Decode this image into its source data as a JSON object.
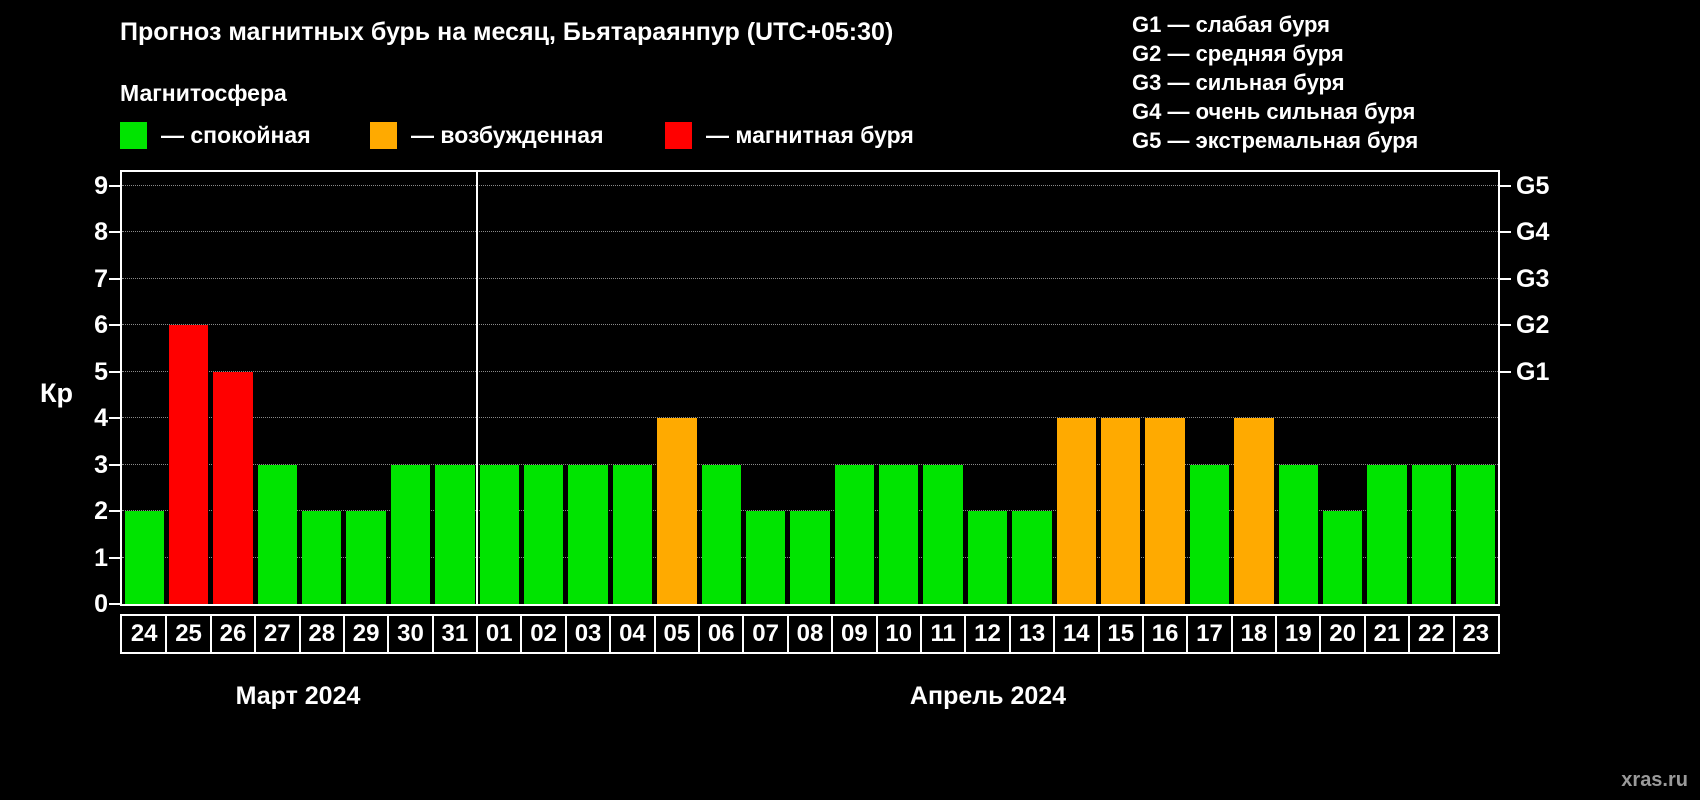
{
  "header": {
    "title": "Прогноз магнитных бурь на месяц, Бьятараянпур (UTC+05:30)"
  },
  "magnetosphere_legend": {
    "title": "Магнитосфера",
    "items": [
      {
        "name": "quiet",
        "label": "— спокойная",
        "color": "#00e400"
      },
      {
        "name": "excited",
        "label": "— возбужденная",
        "color": "#ffaa00"
      },
      {
        "name": "storm",
        "label": "— магнитная буря",
        "color": "#ff0000"
      }
    ]
  },
  "g_legend": [
    "G1 — слабая буря",
    "G2 — средняя буря",
    "G3 — сильная буря",
    "G4 — очень сильная буря",
    "G5 — экстремальная буря"
  ],
  "watermark": "xras.ru",
  "chart_data": {
    "type": "bar",
    "title": "Прогноз магнитных бурь на месяц, Бьятараянпур (UTC+05:30)",
    "ylabel": "Кр",
    "ylim": [
      0,
      9.3
    ],
    "grid": true,
    "legend_position": "top",
    "categories": [
      "24",
      "25",
      "26",
      "27",
      "28",
      "29",
      "30",
      "31",
      "01",
      "02",
      "03",
      "04",
      "05",
      "06",
      "07",
      "08",
      "09",
      "10",
      "11",
      "12",
      "13",
      "14",
      "15",
      "16",
      "17",
      "18",
      "19",
      "20",
      "21",
      "22",
      "23"
    ],
    "values": [
      2,
      6,
      5,
      3,
      2,
      2,
      3,
      3,
      3,
      3,
      3,
      3,
      4,
      3,
      2,
      2,
      3,
      3,
      3,
      2,
      2,
      4,
      4,
      4,
      3,
      4,
      3,
      2,
      3,
      3,
      3
    ],
    "statuses": [
      "quiet",
      "storm",
      "storm",
      "quiet",
      "quiet",
      "quiet",
      "quiet",
      "quiet",
      "quiet",
      "quiet",
      "quiet",
      "quiet",
      "excited",
      "quiet",
      "quiet",
      "quiet",
      "quiet",
      "quiet",
      "quiet",
      "quiet",
      "quiet",
      "excited",
      "excited",
      "excited",
      "quiet",
      "excited",
      "quiet",
      "quiet",
      "quiet",
      "quiet",
      "quiet"
    ],
    "colors": {
      "quiet": "#00e400",
      "excited": "#ffaa00",
      "storm": "#ff0000"
    },
    "month_split_index": 8,
    "y_ticks": [
      0,
      1,
      2,
      3,
      4,
      5,
      6,
      7,
      8,
      9
    ],
    "right_ticks": [
      {
        "label": "G1",
        "kp": 5
      },
      {
        "label": "G2",
        "kp": 6
      },
      {
        "label": "G3",
        "kp": 7
      },
      {
        "label": "G4",
        "kp": 8
      },
      {
        "label": "G5",
        "kp": 9
      }
    ],
    "months": [
      {
        "label": "Март 2024",
        "start": 0,
        "end": 7
      },
      {
        "label": "Апрель 2024",
        "start": 8,
        "end": 30
      }
    ]
  }
}
